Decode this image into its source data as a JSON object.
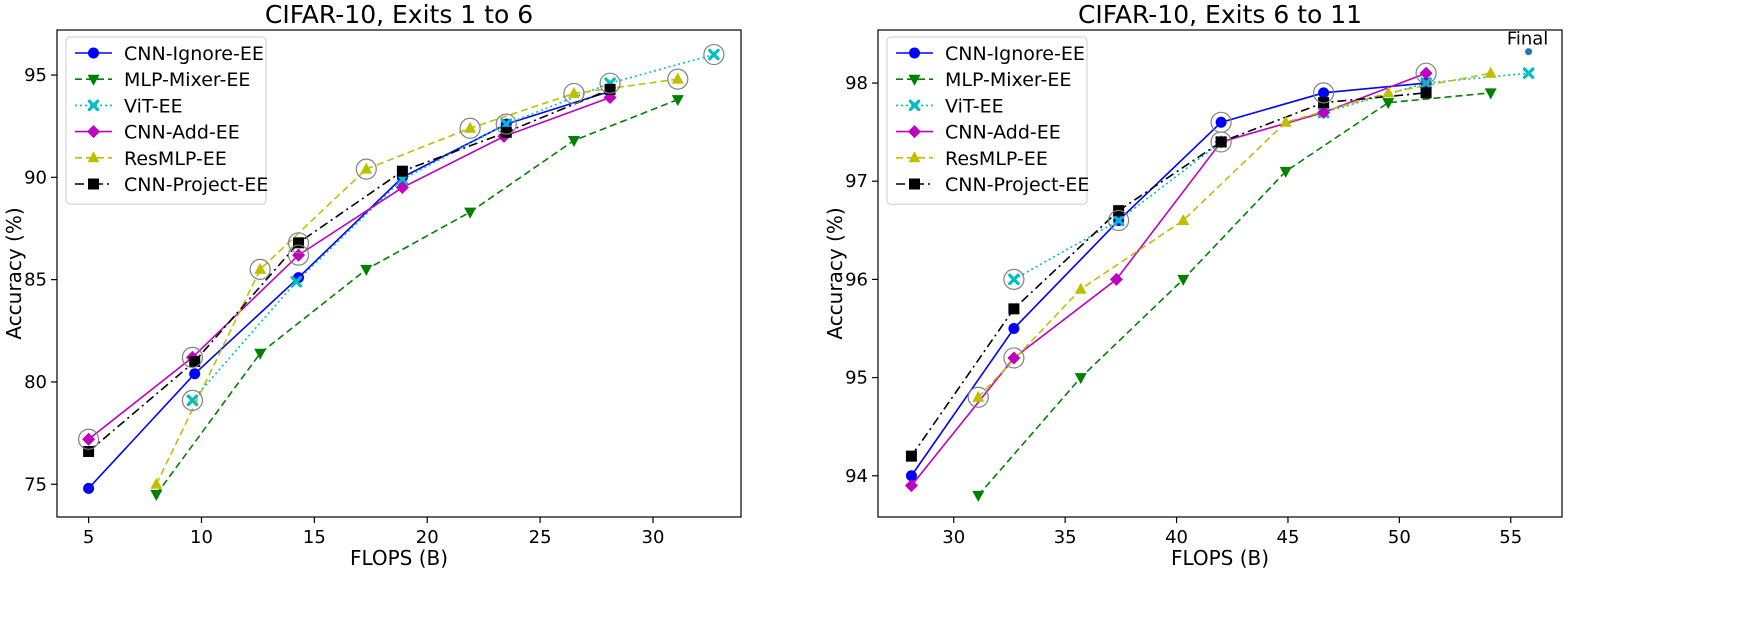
{
  "chart_data": [
    {
      "type": "line",
      "title": "CIFAR-10, Exits 1 to 6",
      "xlabel": "FLOPS (B)",
      "ylabel": "Accuracy (%)",
      "xlim": [
        3.6,
        33.9
      ],
      "ylim": [
        73.4,
        97.2
      ],
      "xticks": [
        "5",
        "10",
        "15",
        "20",
        "25",
        "30"
      ],
      "yticks": [
        "75",
        "80",
        "85",
        "90",
        "95"
      ],
      "grid": false,
      "legend_position": "top-left",
      "series": [
        {
          "name": "CNN-Ignore-EE",
          "color": "#0000ff",
          "marker": "circle",
          "dash": "solid",
          "x": [
            5.0,
            9.7,
            14.3,
            18.9,
            23.5,
            28.1
          ],
          "y": [
            74.8,
            80.4,
            85.1,
            90.0,
            92.6,
            94.2
          ]
        },
        {
          "name": "MLP-Mixer-EE",
          "color": "#008000",
          "marker": "triangle-down",
          "dash": "dashed",
          "x": [
            8.0,
            12.6,
            17.3,
            21.9,
            26.5,
            31.1
          ],
          "y": [
            74.5,
            81.4,
            85.5,
            88.3,
            91.8,
            93.8
          ]
        },
        {
          "name": "ViT-EE",
          "color": "#00bfbf",
          "marker": "x",
          "dash": "dotted",
          "x": [
            9.6,
            14.2,
            18.9,
            23.5,
            28.1,
            32.7
          ],
          "y": [
            79.1,
            84.9,
            89.9,
            92.6,
            94.6,
            96.0
          ]
        },
        {
          "name": "CNN-Add-EE",
          "color": "#bf00bf",
          "marker": "diamond",
          "dash": "solid",
          "x": [
            5.0,
            9.6,
            14.3,
            18.9,
            23.4,
            28.1
          ],
          "y": [
            77.2,
            81.2,
            86.2,
            89.5,
            92.0,
            93.9
          ]
        },
        {
          "name": "ResMLP-EE",
          "color": "#bfbf00",
          "marker": "triangle-up",
          "dash": "dashed",
          "x": [
            8.0,
            12.6,
            17.3,
            21.9,
            26.5,
            31.1
          ],
          "y": [
            75.0,
            85.5,
            90.4,
            92.4,
            94.1,
            94.8
          ]
        },
        {
          "name": "CNN-Project-EE",
          "color": "#000000",
          "marker": "square",
          "dash": "dashdot",
          "x": [
            5.0,
            9.7,
            14.3,
            18.9,
            23.5,
            28.1
          ],
          "y": [
            76.6,
            81.0,
            86.8,
            90.3,
            92.2,
            94.3
          ]
        }
      ],
      "circled_points": [
        [
          5.0,
          77.2
        ],
        [
          9.6,
          81.2
        ],
        [
          9.6,
          79.1
        ],
        [
          12.6,
          85.5
        ],
        [
          14.3,
          86.2
        ],
        [
          14.3,
          86.8
        ],
        [
          17.3,
          90.4
        ],
        [
          21.9,
          92.4
        ],
        [
          23.5,
          92.6
        ],
        [
          26.5,
          94.1
        ],
        [
          28.1,
          94.6
        ],
        [
          31.1,
          94.8
        ],
        [
          32.7,
          96.0
        ]
      ]
    },
    {
      "type": "line",
      "title": "CIFAR-10, Exits 6 to 11",
      "xlabel": "FLOPS (B)",
      "ylabel": "Accuracy (%)",
      "xlim": [
        26.6,
        57.3
      ],
      "ylim": [
        93.58,
        98.54
      ],
      "xticks": [
        "30",
        "35",
        "40",
        "45",
        "50",
        "55"
      ],
      "yticks": [
        "94",
        "95",
        "96",
        "97",
        "98"
      ],
      "grid": false,
      "legend_position": "top-left",
      "series": [
        {
          "name": "CNN-Ignore-EE",
          "color": "#0000ff",
          "marker": "circle",
          "dash": "solid",
          "x": [
            28.1,
            32.7,
            37.4,
            42.0,
            46.6,
            51.2
          ],
          "y": [
            94.0,
            95.5,
            96.6,
            97.6,
            97.9,
            98.0
          ]
        },
        {
          "name": "MLP-Mixer-EE",
          "color": "#008000",
          "marker": "triangle-down",
          "dash": "dashed",
          "x": [
            31.1,
            35.7,
            40.3,
            44.9,
            49.5,
            54.1
          ],
          "y": [
            93.8,
            95.0,
            96.0,
            97.1,
            97.8,
            97.9
          ]
        },
        {
          "name": "ViT-EE",
          "color": "#00bfbf",
          "marker": "x",
          "dash": "dotted",
          "x": [
            32.7,
            37.4,
            42.0,
            46.6,
            51.2,
            55.8
          ],
          "y": [
            96.0,
            96.6,
            97.4,
            97.7,
            98.0,
            98.1
          ]
        },
        {
          "name": "CNN-Add-EE",
          "color": "#bf00bf",
          "marker": "diamond",
          "dash": "solid",
          "x": [
            28.1,
            32.7,
            37.3,
            42.0,
            46.6,
            51.2
          ],
          "y": [
            93.9,
            95.2,
            96.0,
            97.4,
            97.7,
            98.1
          ]
        },
        {
          "name": "ResMLP-EE",
          "color": "#bfbf00",
          "marker": "triangle-up",
          "dash": "dashed",
          "x": [
            31.1,
            35.7,
            40.3,
            44.9,
            49.5,
            54.1
          ],
          "y": [
            94.8,
            95.9,
            96.6,
            97.6,
            97.9,
            98.1
          ]
        },
        {
          "name": "CNN-Project-EE",
          "color": "#000000",
          "marker": "square",
          "dash": "dashdot",
          "x": [
            28.1,
            32.7,
            37.4,
            42.0,
            46.6,
            51.2
          ],
          "y": [
            94.2,
            95.7,
            96.7,
            97.4,
            97.8,
            97.9
          ]
        }
      ],
      "circled_points": [
        [
          31.1,
          94.8
        ],
        [
          32.7,
          95.2
        ],
        [
          32.7,
          96.0
        ],
        [
          37.4,
          96.6
        ],
        [
          42.0,
          97.6
        ],
        [
          42.0,
          97.4
        ],
        [
          46.6,
          97.9
        ],
        [
          51.2,
          98.1
        ]
      ],
      "annotation": {
        "text": "Final",
        "x": 55.8,
        "y": 98.32,
        "color": "#1f77b4"
      }
    }
  ]
}
